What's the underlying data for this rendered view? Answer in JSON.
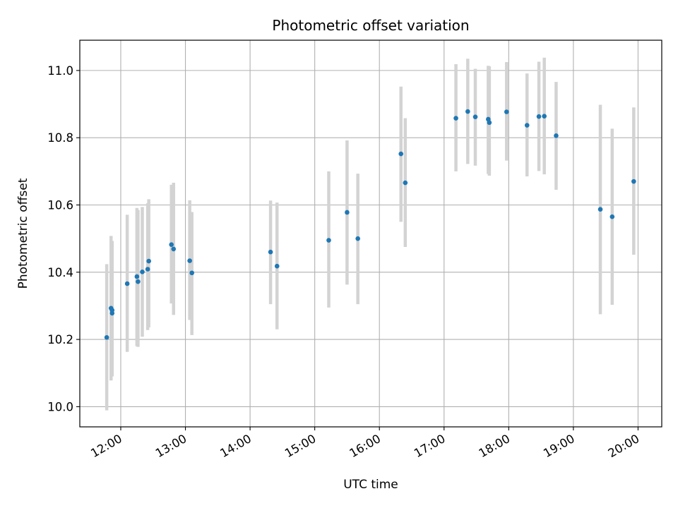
{
  "chart_data": {
    "type": "scatter",
    "title": "Photometric offset variation",
    "xlabel": "UTC time",
    "ylabel": "Photometric offset",
    "xlim": [
      "11:22",
      "20:22"
    ],
    "ylim": [
      9.94,
      11.09
    ],
    "x_ticks": [
      "12:00",
      "13:00",
      "14:00",
      "15:00",
      "16:00",
      "17:00",
      "18:00",
      "19:00",
      "20:00"
    ],
    "y_ticks": [
      "10.0",
      "10.2",
      "10.4",
      "10.6",
      "10.8",
      "11.0"
    ],
    "grid": true,
    "point_color": "#1f77b4",
    "errorbar_color": "#d3d3d3",
    "points": [
      {
        "t": "11:47",
        "y": 10.206,
        "ylo": 9.989,
        "yhi": 10.424
      },
      {
        "t": "11:51",
        "y": 10.293,
        "ylo": 10.078,
        "yhi": 10.508
      },
      {
        "t": "11:52",
        "y": 10.278,
        "ylo": 10.09,
        "yhi": 10.493
      },
      {
        "t": "11:52",
        "y": 10.287,
        "ylo": 10.095,
        "yhi": 10.49
      },
      {
        "t": "12:06",
        "y": 10.366,
        "ylo": 10.163,
        "yhi": 10.571
      },
      {
        "t": "12:15",
        "y": 10.387,
        "ylo": 10.18,
        "yhi": 10.591
      },
      {
        "t": "12:16",
        "y": 10.372,
        "ylo": 10.178,
        "yhi": 10.585
      },
      {
        "t": "12:20",
        "y": 10.401,
        "ylo": 10.208,
        "yhi": 10.594
      },
      {
        "t": "12:25",
        "y": 10.409,
        "ylo": 10.228,
        "yhi": 10.605
      },
      {
        "t": "12:26",
        "y": 10.433,
        "ylo": 10.236,
        "yhi": 10.617
      },
      {
        "t": "12:47",
        "y": 10.482,
        "ylo": 10.307,
        "yhi": 10.66
      },
      {
        "t": "12:49",
        "y": 10.469,
        "ylo": 10.273,
        "yhi": 10.666
      },
      {
        "t": "13:04",
        "y": 10.434,
        "ylo": 10.258,
        "yhi": 10.614
      },
      {
        "t": "13:06",
        "y": 10.398,
        "ylo": 10.213,
        "yhi": 10.579
      },
      {
        "t": "14:19",
        "y": 10.46,
        "ylo": 10.305,
        "yhi": 10.613
      },
      {
        "t": "14:25",
        "y": 10.418,
        "ylo": 10.23,
        "yhi": 10.607
      },
      {
        "t": "15:13",
        "y": 10.495,
        "ylo": 10.295,
        "yhi": 10.7
      },
      {
        "t": "15:30",
        "y": 10.578,
        "ylo": 10.363,
        "yhi": 10.792
      },
      {
        "t": "15:40",
        "y": 10.5,
        "ylo": 10.305,
        "yhi": 10.693
      },
      {
        "t": "16:20",
        "y": 10.752,
        "ylo": 10.55,
        "yhi": 10.952
      },
      {
        "t": "16:24",
        "y": 10.666,
        "ylo": 10.475,
        "yhi": 10.858
      },
      {
        "t": "17:11",
        "y": 10.858,
        "ylo": 10.7,
        "yhi": 11.019
      },
      {
        "t": "17:22",
        "y": 10.878,
        "ylo": 10.722,
        "yhi": 11.035
      },
      {
        "t": "17:29",
        "y": 10.862,
        "ylo": 10.717,
        "yhi": 11.005
      },
      {
        "t": "17:41",
        "y": 10.855,
        "ylo": 10.692,
        "yhi": 11.014
      },
      {
        "t": "17:42",
        "y": 10.845,
        "ylo": 10.687,
        "yhi": 11.012
      },
      {
        "t": "17:58",
        "y": 10.877,
        "ylo": 10.732,
        "yhi": 11.025
      },
      {
        "t": "18:17",
        "y": 10.837,
        "ylo": 10.685,
        "yhi": 10.991
      },
      {
        "t": "18:28",
        "y": 10.863,
        "ylo": 10.701,
        "yhi": 11.026
      },
      {
        "t": "18:33",
        "y": 10.864,
        "ylo": 10.691,
        "yhi": 11.038
      },
      {
        "t": "18:44",
        "y": 10.806,
        "ylo": 10.645,
        "yhi": 10.966
      },
      {
        "t": "19:25",
        "y": 10.587,
        "ylo": 10.275,
        "yhi": 10.898
      },
      {
        "t": "19:36",
        "y": 10.565,
        "ylo": 10.303,
        "yhi": 10.827
      },
      {
        "t": "19:56",
        "y": 10.67,
        "ylo": 10.452,
        "yhi": 10.89
      }
    ]
  }
}
